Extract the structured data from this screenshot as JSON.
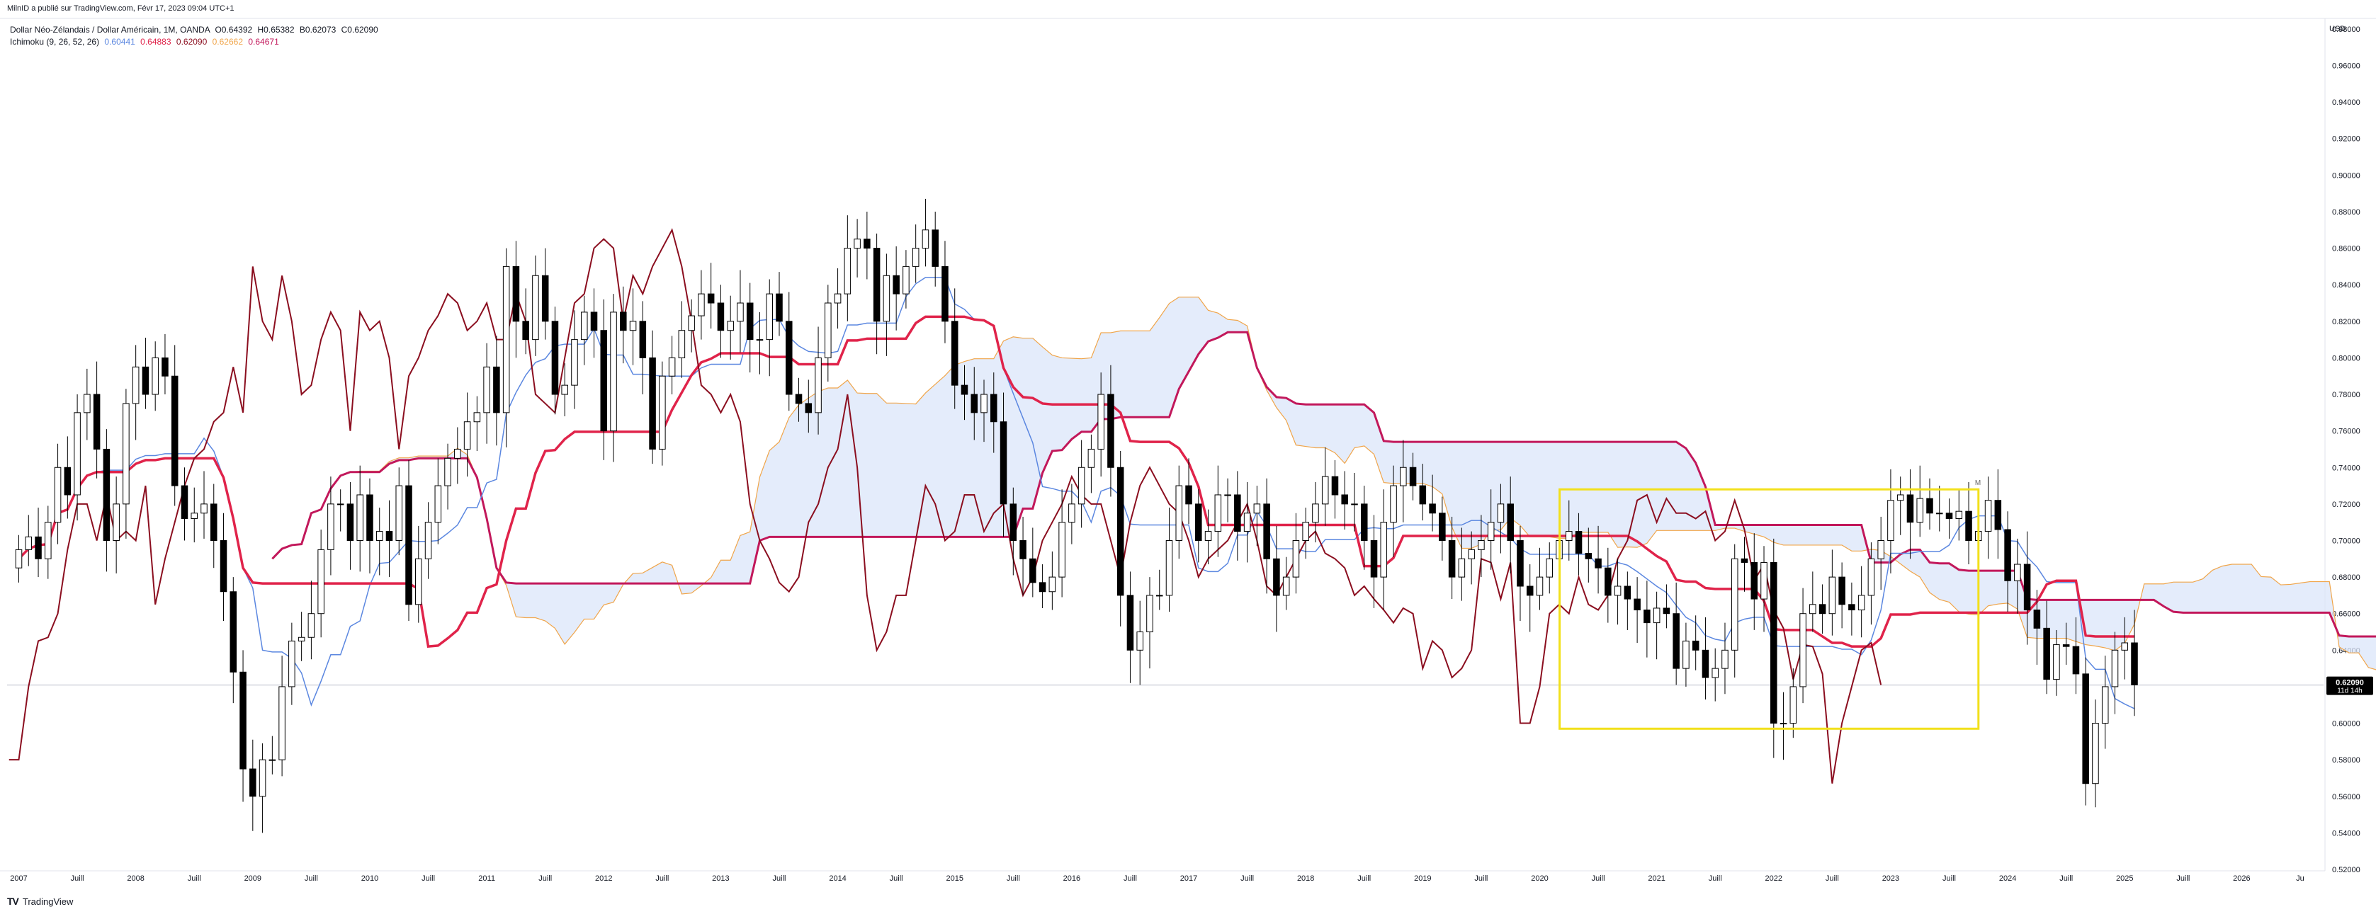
{
  "header": {
    "published_by": "MilnID a publié sur TradingView.com, Févr 17, 2023 09:04 UTC+1"
  },
  "legend": {
    "symbol_line": "Dollar Néo-Zélandais / Dollar Américain, 1M, OANDA",
    "ohlc": {
      "open": "O0.64392",
      "high": "H0.65382",
      "low": "B0.62073",
      "close": "C0.62090"
    },
    "indicator_name": "Ichimoku (9, 26, 52, 26)",
    "indicator_values": [
      {
        "value": "0.60441",
        "color": "#5b87e0"
      },
      {
        "value": "0.64883",
        "color": "#e0234a"
      },
      {
        "value": "0.62090",
        "color": "#8b0e1f"
      },
      {
        "value": "0.62662",
        "color": "#f0a54a"
      },
      {
        "value": "0.64671",
        "color": "#c2185b"
      }
    ]
  },
  "colors": {
    "tenkan": "#5b87e0",
    "kijun": "#e0234a",
    "chikou": "#8b0e1f",
    "span_a": "#f0a54a",
    "span_b": "#c2185b",
    "cloud_fill": "#dbe6fa",
    "box": "#f2e01b",
    "candle_up_fill": "#ffffff",
    "candle_down_fill": "#000000",
    "price_label_bg": "#000000"
  },
  "icons": {
    "brand_logo": "tradingview-logo-icon",
    "annotation_marker": "M"
  },
  "brand": {
    "logo_text": "TV",
    "name": "TradingView"
  },
  "chart_data": {
    "type": "candlestick",
    "title": "Dollar Néo-Zélandais / Dollar Américain, 1M, OANDA",
    "currency_label": "USD",
    "y_range": [
      0.52,
      0.985
    ],
    "y_ticks": [
      "0.98000",
      "0.96000",
      "0.94000",
      "0.92000",
      "0.90000",
      "0.88000",
      "0.86000",
      "0.84000",
      "0.82000",
      "0.80000",
      "0.78000",
      "0.76000",
      "0.74000",
      "0.72000",
      "0.70000",
      "0.68000",
      "0.66000",
      "0.64000",
      "0.62000",
      "0.60000",
      "0.58000",
      "0.56000",
      "0.54000",
      "0.52000"
    ],
    "x_range": [
      2006.9,
      2026.7
    ],
    "x_ticks": [
      {
        "t": 2007.0,
        "label": "2007"
      },
      {
        "t": 2007.5,
        "label": "Juill"
      },
      {
        "t": 2008.0,
        "label": "2008"
      },
      {
        "t": 2008.5,
        "label": "Juill"
      },
      {
        "t": 2009.0,
        "label": "2009"
      },
      {
        "t": 2009.5,
        "label": "Juill"
      },
      {
        "t": 2010.0,
        "label": "2010"
      },
      {
        "t": 2010.5,
        "label": "Juill"
      },
      {
        "t": 2011.0,
        "label": "2011"
      },
      {
        "t": 2011.5,
        "label": "Juill"
      },
      {
        "t": 2012.0,
        "label": "2012"
      },
      {
        "t": 2012.5,
        "label": "Juill"
      },
      {
        "t": 2013.0,
        "label": "2013"
      },
      {
        "t": 2013.5,
        "label": "Juill"
      },
      {
        "t": 2014.0,
        "label": "2014"
      },
      {
        "t": 2014.5,
        "label": "Juill"
      },
      {
        "t": 2015.0,
        "label": "2015"
      },
      {
        "t": 2015.5,
        "label": "Juill"
      },
      {
        "t": 2016.0,
        "label": "2016"
      },
      {
        "t": 2016.5,
        "label": "Juill"
      },
      {
        "t": 2017.0,
        "label": "2017"
      },
      {
        "t": 2017.5,
        "label": "Juill"
      },
      {
        "t": 2018.0,
        "label": "2018"
      },
      {
        "t": 2018.5,
        "label": "Juill"
      },
      {
        "t": 2019.0,
        "label": "2019"
      },
      {
        "t": 2019.5,
        "label": "Juill"
      },
      {
        "t": 2020.0,
        "label": "2020"
      },
      {
        "t": 2020.5,
        "label": "Juill"
      },
      {
        "t": 2021.0,
        "label": "2021"
      },
      {
        "t": 2021.5,
        "label": "Juill"
      },
      {
        "t": 2022.0,
        "label": "2022"
      },
      {
        "t": 2022.5,
        "label": "Juill"
      },
      {
        "t": 2023.0,
        "label": "2023"
      },
      {
        "t": 2023.5,
        "label": "Juill"
      },
      {
        "t": 2024.0,
        "label": "2024"
      },
      {
        "t": 2024.5,
        "label": "Juill"
      },
      {
        "t": 2025.0,
        "label": "2025"
      },
      {
        "t": 2025.5,
        "label": "Juill"
      },
      {
        "t": 2026.0,
        "label": "2026"
      },
      {
        "t": 2026.5,
        "label": "Ju"
      }
    ],
    "last_price": {
      "value": 0.6209,
      "label": "0.62090",
      "countdown": "11d 14h"
    },
    "current_price_line": 0.6209,
    "candles_monthly_close": [
      0.695,
      0.702,
      0.69,
      0.71,
      0.74,
      0.725,
      0.77,
      0.78,
      0.75,
      0.7,
      0.72,
      0.775,
      0.795,
      0.78,
      0.8,
      0.79,
      0.73,
      0.712,
      0.715,
      0.72,
      0.7,
      0.672,
      0.628,
      0.575,
      0.56,
      0.58,
      0.58,
      0.62,
      0.645,
      0.647,
      0.66,
      0.695,
      0.72,
      0.72,
      0.7,
      0.725,
      0.7,
      0.705,
      0.7,
      0.73,
      0.665,
      0.69,
      0.71,
      0.73,
      0.745,
      0.75,
      0.765,
      0.77,
      0.795,
      0.77,
      0.85,
      0.82,
      0.81,
      0.845,
      0.82,
      0.78,
      0.785,
      0.81,
      0.825,
      0.815,
      0.76,
      0.825,
      0.815,
      0.82,
      0.8,
      0.75,
      0.79,
      0.8,
      0.815,
      0.823,
      0.835,
      0.83,
      0.815,
      0.82,
      0.83,
      0.81,
      0.81,
      0.835,
      0.82,
      0.78,
      0.775,
      0.77,
      0.8,
      0.83,
      0.835,
      0.86,
      0.865,
      0.86,
      0.82,
      0.845,
      0.835,
      0.85,
      0.86,
      0.87,
      0.85,
      0.82,
      0.785,
      0.78,
      0.77,
      0.78,
      0.765,
      0.72,
      0.7,
      0.69,
      0.677,
      0.672,
      0.68,
      0.71,
      0.72,
      0.74,
      0.75,
      0.78,
      0.74,
      0.67,
      0.64,
      0.65,
      0.67,
      0.67,
      0.7,
      0.73,
      0.72,
      0.7,
      0.705,
      0.725,
      0.725,
      0.705,
      0.715,
      0.72,
      0.69,
      0.67,
      0.68,
      0.7,
      0.71,
      0.72,
      0.735,
      0.725,
      0.72,
      0.72,
      0.7,
      0.68,
      0.71,
      0.73,
      0.74,
      0.73,
      0.72,
      0.715,
      0.7,
      0.68,
      0.69,
      0.695,
      0.7,
      0.71,
      0.72,
      0.7,
      0.675,
      0.67,
      0.68,
      0.69,
      0.7,
      0.705,
      0.693,
      0.69,
      0.685,
      0.67,
      0.675,
      0.668,
      0.662,
      0.655,
      0.663,
      0.66,
      0.63,
      0.645,
      0.64,
      0.625,
      0.63,
      0.64,
      0.69,
      0.688,
      0.668,
      0.688,
      0.6,
      0.6,
      0.62,
      0.66,
      0.665,
      0.66,
      0.68,
      0.665,
      0.662,
      0.67,
      0.69,
      0.7,
      0.722,
      0.725,
      0.71,
      0.723,
      0.715,
      0.715,
      0.712,
      0.716,
      0.7,
      0.705,
      0.722,
      0.706,
      0.678,
      0.687,
      0.662,
      0.652,
      0.624,
      0.643,
      0.642,
      0.627,
      0.567,
      0.6,
      0.62,
      0.64,
      0.644,
      0.621
    ]
  }
}
